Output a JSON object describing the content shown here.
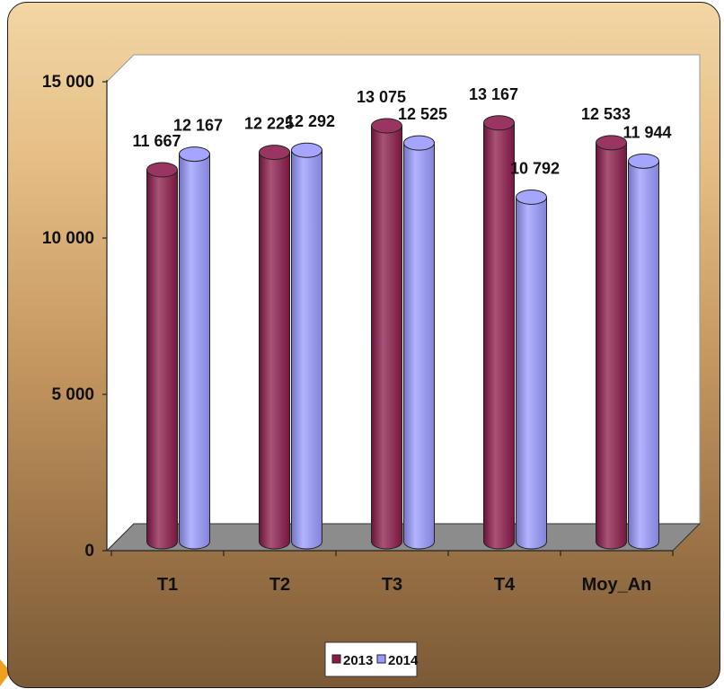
{
  "chart_data": {
    "type": "bar",
    "title": "",
    "xlabel": "",
    "ylabel": "",
    "categories": [
      "T1",
      "T2",
      "T3",
      "T4",
      "Moy_An"
    ],
    "series": [
      {
        "name": "2013",
        "values": [
          11667,
          12225,
          13075,
          13167,
          12533
        ],
        "labels": [
          "11 667",
          "12 225",
          "13 075",
          "13 167",
          "12 533"
        ],
        "color": "#8b1a4a"
      },
      {
        "name": "2014",
        "values": [
          12167,
          12292,
          12525,
          10792,
          11944
        ],
        "labels": [
          "12 167",
          "12 292",
          "12 525",
          "10 792",
          "11 944"
        ],
        "color": "#9999ff"
      }
    ],
    "ylim": [
      0,
      15000
    ],
    "yticks": [
      0,
      5000,
      10000,
      15000
    ],
    "ytick_labels": [
      "0",
      "5 000",
      "10 000",
      "15 000"
    ],
    "grid": false,
    "legend_position": "bottom"
  },
  "colors": {
    "frame_gradient_top": "#f2d6a4",
    "frame_gradient_bottom": "#7b5a37",
    "plot_wall": "#ffffff",
    "plot_floor": "#8c8c8c",
    "accent": "#f0a020"
  }
}
